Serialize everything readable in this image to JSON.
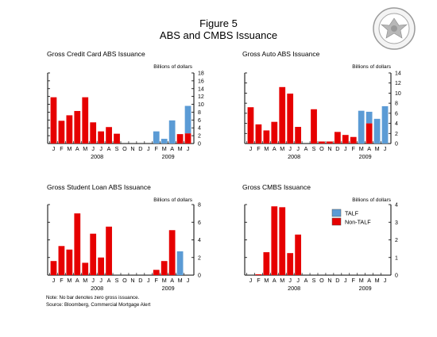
{
  "figure": {
    "label": "Figure 5",
    "title": "ABS and CMBS Issuance"
  },
  "legend": [
    {
      "name": "TALF",
      "color": "#5b9bd5"
    },
    {
      "name": "Non-TALF",
      "color": "#e60000"
    }
  ],
  "notes": {
    "note": "Note: No bar denotes zero gross issuance.",
    "source": "Source: Bloomberg, Commercial Mortgage Alert"
  },
  "colors": {
    "non_talf": "#e60000",
    "talf": "#5b9bd5"
  },
  "chart_data": [
    {
      "type": "bar",
      "stacked": true,
      "title": "Gross Credit Card ABS Issuance",
      "units": "Billions of dollars",
      "categories": [
        "J",
        "F",
        "M",
        "A",
        "M",
        "J",
        "J",
        "A",
        "S",
        "O",
        "N",
        "D",
        "J",
        "F",
        "M",
        "A",
        "M",
        "J"
      ],
      "year_labels": [
        "2008",
        "2009"
      ],
      "ylim": [
        0,
        18
      ],
      "yticks": [
        0,
        2,
        4,
        6,
        8,
        10,
        12,
        14,
        16,
        18
      ],
      "series": [
        {
          "name": "Non-TALF",
          "values": [
            11.8,
            5.8,
            7.2,
            8.3,
            11.8,
            5.4,
            3.1,
            4.2,
            2.5,
            0,
            0,
            0,
            0,
            0,
            0,
            0,
            2.4,
            2.6
          ]
        },
        {
          "name": "TALF",
          "values": [
            0,
            0,
            0,
            0,
            0,
            0,
            0,
            0,
            0,
            0,
            0,
            0,
            0,
            3.1,
            1.2,
            5.9,
            0,
            7.0
          ]
        }
      ]
    },
    {
      "type": "bar",
      "stacked": true,
      "title": "Gross Auto ABS Issuance",
      "units": "Billions of dollars",
      "categories": [
        "J",
        "F",
        "M",
        "A",
        "M",
        "J",
        "J",
        "A",
        "S",
        "O",
        "N",
        "D",
        "J",
        "F",
        "M",
        "A",
        "M",
        "J"
      ],
      "year_labels": [
        "2008",
        "2009"
      ],
      "ylim": [
        0,
        14
      ],
      "yticks": [
        0,
        2,
        4,
        6,
        8,
        10,
        12,
        14
      ],
      "series": [
        {
          "name": "Non-TALF",
          "values": [
            7.2,
            3.8,
            2.6,
            4.3,
            11.2,
            9.9,
            3.3,
            0,
            6.8,
            0.4,
            0.4,
            2.3,
            1.7,
            1.3,
            0,
            4.0,
            0,
            0
          ]
        },
        {
          "name": "TALF",
          "values": [
            0,
            0,
            0,
            0,
            0,
            0,
            0,
            0,
            0,
            0,
            0,
            0,
            0,
            0,
            6.5,
            2.3,
            4.9,
            7.4
          ]
        }
      ]
    },
    {
      "type": "bar",
      "stacked": true,
      "title": "Gross Student Loan ABS Issuance",
      "units": "Billions of dollars",
      "categories": [
        "J",
        "F",
        "M",
        "A",
        "M",
        "J",
        "J",
        "A",
        "S",
        "O",
        "N",
        "D",
        "J",
        "F",
        "M",
        "A",
        "M",
        "J"
      ],
      "year_labels": [
        "2008",
        "2009"
      ],
      "ylim": [
        0,
        8
      ],
      "yticks": [
        0,
        2,
        4,
        6,
        8
      ],
      "series": [
        {
          "name": "Non-TALF",
          "values": [
            1.6,
            3.3,
            2.9,
            7.0,
            1.4,
            4.7,
            2.0,
            5.5,
            0,
            0,
            0,
            0,
            0,
            0.6,
            1.6,
            5.1,
            0,
            0
          ]
        },
        {
          "name": "TALF",
          "values": [
            0,
            0,
            0,
            0,
            0,
            0,
            0,
            0,
            0,
            0,
            0,
            0,
            0,
            0,
            0,
            0,
            2.7,
            0
          ]
        }
      ]
    },
    {
      "type": "bar",
      "stacked": true,
      "title": "Gross CMBS Issuance",
      "units": "Billions of dollars",
      "categories": [
        "J",
        "F",
        "M",
        "A",
        "M",
        "J",
        "J",
        "A",
        "S",
        "O",
        "N",
        "D",
        "J",
        "F",
        "M",
        "A",
        "M",
        "J"
      ],
      "year_labels": [
        "2008",
        "2009"
      ],
      "ylim": [
        0,
        4
      ],
      "yticks": [
        0,
        1,
        2,
        3,
        4
      ],
      "legend": true,
      "series": [
        {
          "name": "Non-TALF",
          "values": [
            0,
            0.05,
            1.3,
            3.9,
            3.85,
            1.25,
            2.3,
            0,
            0,
            0,
            0,
            0,
            0,
            0,
            0,
            0,
            0,
            0
          ]
        },
        {
          "name": "TALF",
          "values": [
            0,
            0,
            0,
            0,
            0,
            0,
            0,
            0,
            0,
            0,
            0,
            0,
            0,
            0,
            0,
            0,
            0,
            0
          ]
        }
      ]
    }
  ]
}
